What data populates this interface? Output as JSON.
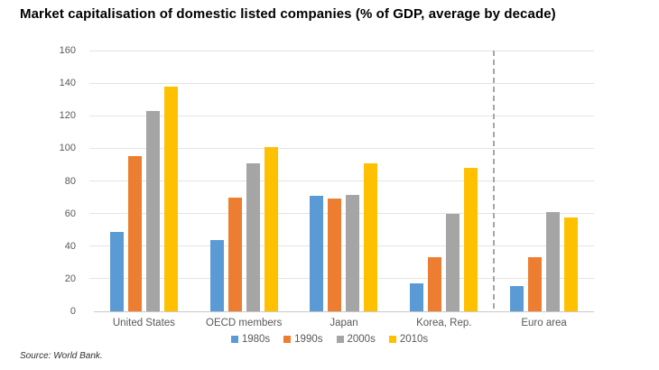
{
  "source": "Source: World Bank.",
  "chart_data": {
    "type": "bar",
    "title": "Market capitalisation of domestic listed companies (% of GDP, average by decade)",
    "xlabel": "",
    "ylabel": "",
    "categories": [
      "United States",
      "OECD members",
      "Japan",
      "Korea, Rep.",
      "Euro area"
    ],
    "series": [
      {
        "name": "1980s",
        "color": "#5B9BD5",
        "values": [
          49,
          44,
          71,
          17,
          15.5
        ]
      },
      {
        "name": "1990s",
        "color": "#ED7D31",
        "values": [
          95,
          70,
          69,
          33,
          33.5
        ]
      },
      {
        "name": "2000s",
        "color": "#A5A5A5",
        "values": [
          123,
          91,
          71.5,
          60,
          61
        ]
      },
      {
        "name": "2010s",
        "color": "#FFC000",
        "values": [
          138,
          101,
          91,
          88,
          57.5
        ]
      }
    ],
    "ylim": [
      0,
      160
    ],
    "yticks": [
      0,
      20,
      40,
      60,
      80,
      100,
      120,
      140,
      160
    ],
    "grid": "horizontal",
    "legend_position": "bottom",
    "separator_after_category": "Korea, Rep.",
    "separator_style": "dashed-vertical-line",
    "colors": {
      "gridline": "#E4E4E4",
      "axis_line": "#C9C9C9",
      "tick_label": "#595959",
      "divider": "#A6A6A6",
      "title": "#000000"
    }
  }
}
